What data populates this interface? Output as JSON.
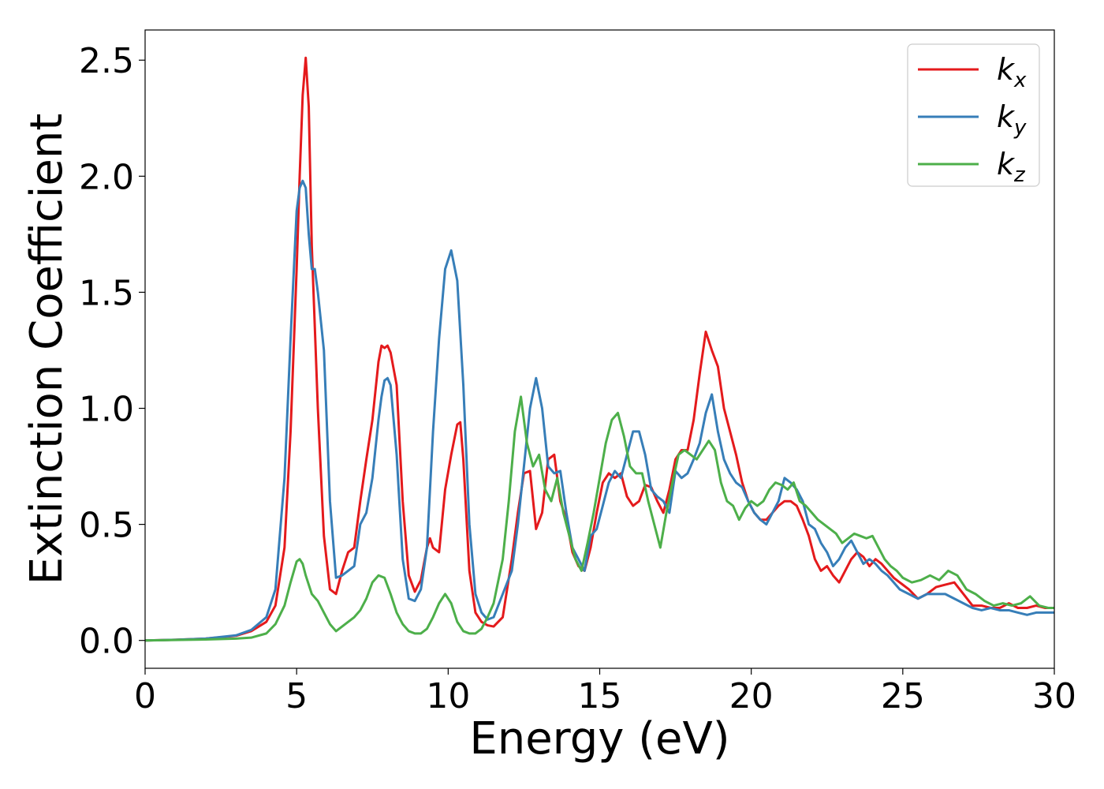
{
  "chart_data": {
    "type": "line",
    "title": "",
    "xlabel": "Energy (eV)",
    "ylabel": "Extinction Coefficient",
    "xlim": [
      0,
      30
    ],
    "ylim": [
      -0.12,
      2.63
    ],
    "xticks": [
      0,
      5,
      10,
      15,
      20,
      25,
      30
    ],
    "xtick_labels": [
      "0",
      "5",
      "10",
      "15",
      "20",
      "25",
      "30"
    ],
    "yticks": [
      0.0,
      0.5,
      1.0,
      1.5,
      2.0,
      2.5
    ],
    "ytick_labels": [
      "0.0",
      "0.5",
      "1.0",
      "1.5",
      "2.0",
      "2.5"
    ],
    "grid": false,
    "legend_position": "top-right",
    "series": [
      {
        "name": "k",
        "subscript": "x",
        "color": "#e41a1c",
        "x": [
          0,
          1,
          2,
          3,
          3.5,
          4.0,
          4.3,
          4.6,
          4.8,
          5.0,
          5.1,
          5.2,
          5.3,
          5.4,
          5.5,
          5.7,
          5.9,
          6.1,
          6.3,
          6.5,
          6.7,
          6.9,
          7.1,
          7.3,
          7.5,
          7.7,
          7.8,
          7.9,
          8.0,
          8.1,
          8.3,
          8.5,
          8.7,
          8.9,
          9.1,
          9.3,
          9.4,
          9.5,
          9.7,
          9.9,
          10.1,
          10.3,
          10.4,
          10.5,
          10.7,
          10.9,
          11.1,
          11.3,
          11.5,
          11.8,
          12.1,
          12.3,
          12.5,
          12.7,
          12.9,
          13.1,
          13.3,
          13.5,
          13.7,
          13.9,
          14.1,
          14.3,
          14.5,
          14.7,
          14.9,
          15.1,
          15.3,
          15.5,
          15.7,
          15.9,
          16.1,
          16.3,
          16.5,
          16.7,
          16.9,
          17.1,
          17.3,
          17.5,
          17.7,
          17.9,
          18.1,
          18.3,
          18.5,
          18.7,
          18.9,
          19.1,
          19.3,
          19.5,
          19.7,
          19.9,
          20.1,
          20.3,
          20.5,
          20.7,
          20.9,
          21.1,
          21.3,
          21.5,
          21.7,
          21.9,
          22.1,
          22.3,
          22.5,
          22.7,
          22.9,
          23.1,
          23.3,
          23.5,
          23.7,
          23.9,
          24.1,
          24.3,
          24.5,
          24.7,
          24.9,
          25.2,
          25.5,
          25.8,
          26.1,
          26.4,
          26.7,
          27.0,
          27.3,
          27.6,
          27.9,
          28.2,
          28.5,
          28.8,
          29.1,
          29.4,
          29.7,
          30.0
        ],
        "y": [
          0.0,
          0.003,
          0.008,
          0.02,
          0.04,
          0.08,
          0.15,
          0.4,
          0.9,
          1.6,
          2.0,
          2.35,
          2.51,
          2.3,
          1.7,
          1.0,
          0.45,
          0.22,
          0.2,
          0.3,
          0.38,
          0.4,
          0.6,
          0.78,
          0.95,
          1.2,
          1.27,
          1.26,
          1.27,
          1.24,
          1.1,
          0.6,
          0.28,
          0.21,
          0.26,
          0.4,
          0.44,
          0.4,
          0.38,
          0.65,
          0.8,
          0.93,
          0.94,
          0.78,
          0.3,
          0.12,
          0.08,
          0.065,
          0.06,
          0.1,
          0.35,
          0.55,
          0.72,
          0.73,
          0.48,
          0.55,
          0.78,
          0.8,
          0.6,
          0.52,
          0.38,
          0.32,
          0.3,
          0.4,
          0.55,
          0.68,
          0.72,
          0.7,
          0.72,
          0.62,
          0.58,
          0.6,
          0.67,
          0.66,
          0.6,
          0.55,
          0.65,
          0.78,
          0.82,
          0.82,
          0.95,
          1.15,
          1.33,
          1.25,
          1.18,
          1.0,
          0.9,
          0.8,
          0.68,
          0.6,
          0.55,
          0.52,
          0.52,
          0.55,
          0.58,
          0.6,
          0.6,
          0.58,
          0.52,
          0.45,
          0.35,
          0.3,
          0.32,
          0.28,
          0.25,
          0.3,
          0.35,
          0.38,
          0.36,
          0.32,
          0.35,
          0.33,
          0.3,
          0.27,
          0.25,
          0.22,
          0.18,
          0.2,
          0.23,
          0.24,
          0.25,
          0.2,
          0.15,
          0.15,
          0.14,
          0.14,
          0.16,
          0.14,
          0.14,
          0.15,
          0.14,
          0.14
        ]
      },
      {
        "name": "k",
        "subscript": "y",
        "color": "#377eb8",
        "x": [
          0,
          1,
          2,
          3,
          3.5,
          4.0,
          4.3,
          4.6,
          4.8,
          5.0,
          5.1,
          5.2,
          5.3,
          5.4,
          5.5,
          5.6,
          5.7,
          5.9,
          6.1,
          6.3,
          6.5,
          6.7,
          6.9,
          7.1,
          7.3,
          7.5,
          7.7,
          7.8,
          7.9,
          8.0,
          8.1,
          8.3,
          8.5,
          8.7,
          8.9,
          9.1,
          9.3,
          9.5,
          9.7,
          9.9,
          10.1,
          10.3,
          10.5,
          10.7,
          10.9,
          11.1,
          11.3,
          11.5,
          11.8,
          12.1,
          12.3,
          12.5,
          12.7,
          12.9,
          13.1,
          13.3,
          13.5,
          13.7,
          13.9,
          14.1,
          14.3,
          14.5,
          14.7,
          14.9,
          15.1,
          15.3,
          15.5,
          15.7,
          15.9,
          16.1,
          16.3,
          16.5,
          16.7,
          16.9,
          17.1,
          17.3,
          17.5,
          17.7,
          17.9,
          18.1,
          18.3,
          18.5,
          18.7,
          18.9,
          19.1,
          19.3,
          19.5,
          19.7,
          19.9,
          20.1,
          20.3,
          20.5,
          20.7,
          20.9,
          21.1,
          21.3,
          21.5,
          21.7,
          21.9,
          22.1,
          22.3,
          22.5,
          22.7,
          22.9,
          23.1,
          23.3,
          23.5,
          23.7,
          23.9,
          24.1,
          24.3,
          24.5,
          24.7,
          24.9,
          25.2,
          25.5,
          25.8,
          26.1,
          26.4,
          26.7,
          27.0,
          27.3,
          27.6,
          27.9,
          28.2,
          28.5,
          28.8,
          29.1,
          29.4,
          29.7,
          30.0
        ],
        "y": [
          0.0,
          0.003,
          0.008,
          0.022,
          0.045,
          0.1,
          0.22,
          0.7,
          1.3,
          1.85,
          1.95,
          1.98,
          1.95,
          1.75,
          1.6,
          1.6,
          1.5,
          1.25,
          0.6,
          0.27,
          0.28,
          0.3,
          0.32,
          0.5,
          0.55,
          0.7,
          0.95,
          1.05,
          1.12,
          1.13,
          1.1,
          0.8,
          0.35,
          0.18,
          0.17,
          0.22,
          0.4,
          0.9,
          1.3,
          1.6,
          1.68,
          1.55,
          1.1,
          0.5,
          0.2,
          0.12,
          0.09,
          0.1,
          0.2,
          0.3,
          0.5,
          0.75,
          1.0,
          1.13,
          1.0,
          0.75,
          0.72,
          0.73,
          0.55,
          0.4,
          0.35,
          0.3,
          0.45,
          0.48,
          0.58,
          0.68,
          0.73,
          0.7,
          0.8,
          0.9,
          0.9,
          0.8,
          0.65,
          0.62,
          0.6,
          0.55,
          0.73,
          0.7,
          0.72,
          0.78,
          0.85,
          0.98,
          1.06,
          0.9,
          0.78,
          0.72,
          0.68,
          0.66,
          0.6,
          0.55,
          0.52,
          0.5,
          0.55,
          0.6,
          0.7,
          0.68,
          0.65,
          0.6,
          0.5,
          0.48,
          0.42,
          0.38,
          0.32,
          0.35,
          0.4,
          0.43,
          0.38,
          0.33,
          0.35,
          0.33,
          0.3,
          0.28,
          0.25,
          0.22,
          0.2,
          0.18,
          0.2,
          0.2,
          0.2,
          0.18,
          0.16,
          0.14,
          0.13,
          0.14,
          0.13,
          0.13,
          0.12,
          0.11,
          0.12,
          0.12,
          0.12
        ]
      },
      {
        "name": "k",
        "subscript": "z",
        "color": "#4daf4a",
        "x": [
          0,
          1,
          2,
          3,
          3.5,
          4.0,
          4.3,
          4.6,
          4.8,
          5.0,
          5.1,
          5.2,
          5.3,
          5.5,
          5.7,
          5.9,
          6.1,
          6.3,
          6.5,
          6.7,
          6.9,
          7.1,
          7.3,
          7.5,
          7.7,
          7.9,
          8.1,
          8.3,
          8.5,
          8.7,
          8.9,
          9.1,
          9.3,
          9.5,
          9.7,
          9.9,
          10.1,
          10.3,
          10.5,
          10.7,
          10.9,
          11.1,
          11.3,
          11.5,
          11.8,
          12.0,
          12.2,
          12.4,
          12.6,
          12.8,
          13.0,
          13.2,
          13.4,
          13.6,
          13.8,
          14.0,
          14.2,
          14.4,
          14.6,
          14.8,
          15.0,
          15.2,
          15.4,
          15.6,
          15.8,
          16.0,
          16.2,
          16.4,
          16.6,
          16.8,
          17.0,
          17.2,
          17.4,
          17.6,
          17.8,
          18.0,
          18.2,
          18.4,
          18.6,
          18.8,
          19.0,
          19.2,
          19.4,
          19.6,
          19.8,
          20.0,
          20.2,
          20.4,
          20.6,
          20.8,
          21.0,
          21.2,
          21.4,
          21.6,
          21.8,
          22.0,
          22.2,
          22.4,
          22.6,
          22.8,
          23.0,
          23.2,
          23.4,
          23.6,
          23.8,
          24.0,
          24.2,
          24.4,
          24.6,
          24.8,
          25.0,
          25.3,
          25.6,
          25.9,
          26.2,
          26.5,
          26.8,
          27.1,
          27.4,
          27.7,
          28.0,
          28.3,
          28.6,
          28.9,
          29.2,
          29.5,
          29.8,
          30.0
        ],
        "y": [
          0.0,
          0.002,
          0.004,
          0.008,
          0.012,
          0.03,
          0.07,
          0.15,
          0.25,
          0.34,
          0.35,
          0.33,
          0.28,
          0.2,
          0.17,
          0.12,
          0.07,
          0.04,
          0.06,
          0.08,
          0.1,
          0.13,
          0.18,
          0.25,
          0.28,
          0.27,
          0.2,
          0.12,
          0.07,
          0.04,
          0.03,
          0.03,
          0.05,
          0.1,
          0.16,
          0.2,
          0.16,
          0.08,
          0.04,
          0.03,
          0.03,
          0.05,
          0.1,
          0.16,
          0.35,
          0.6,
          0.9,
          1.05,
          0.85,
          0.75,
          0.8,
          0.65,
          0.6,
          0.7,
          0.55,
          0.45,
          0.35,
          0.3,
          0.42,
          0.55,
          0.7,
          0.85,
          0.95,
          0.98,
          0.88,
          0.75,
          0.72,
          0.72,
          0.6,
          0.5,
          0.4,
          0.55,
          0.68,
          0.8,
          0.82,
          0.8,
          0.78,
          0.82,
          0.86,
          0.82,
          0.68,
          0.6,
          0.58,
          0.52,
          0.57,
          0.6,
          0.58,
          0.6,
          0.65,
          0.68,
          0.67,
          0.65,
          0.68,
          0.6,
          0.58,
          0.55,
          0.52,
          0.5,
          0.48,
          0.46,
          0.42,
          0.44,
          0.46,
          0.45,
          0.44,
          0.45,
          0.4,
          0.35,
          0.32,
          0.3,
          0.27,
          0.25,
          0.26,
          0.28,
          0.26,
          0.3,
          0.28,
          0.22,
          0.2,
          0.17,
          0.15,
          0.16,
          0.15,
          0.16,
          0.19,
          0.15,
          0.14,
          0.14
        ]
      }
    ]
  }
}
